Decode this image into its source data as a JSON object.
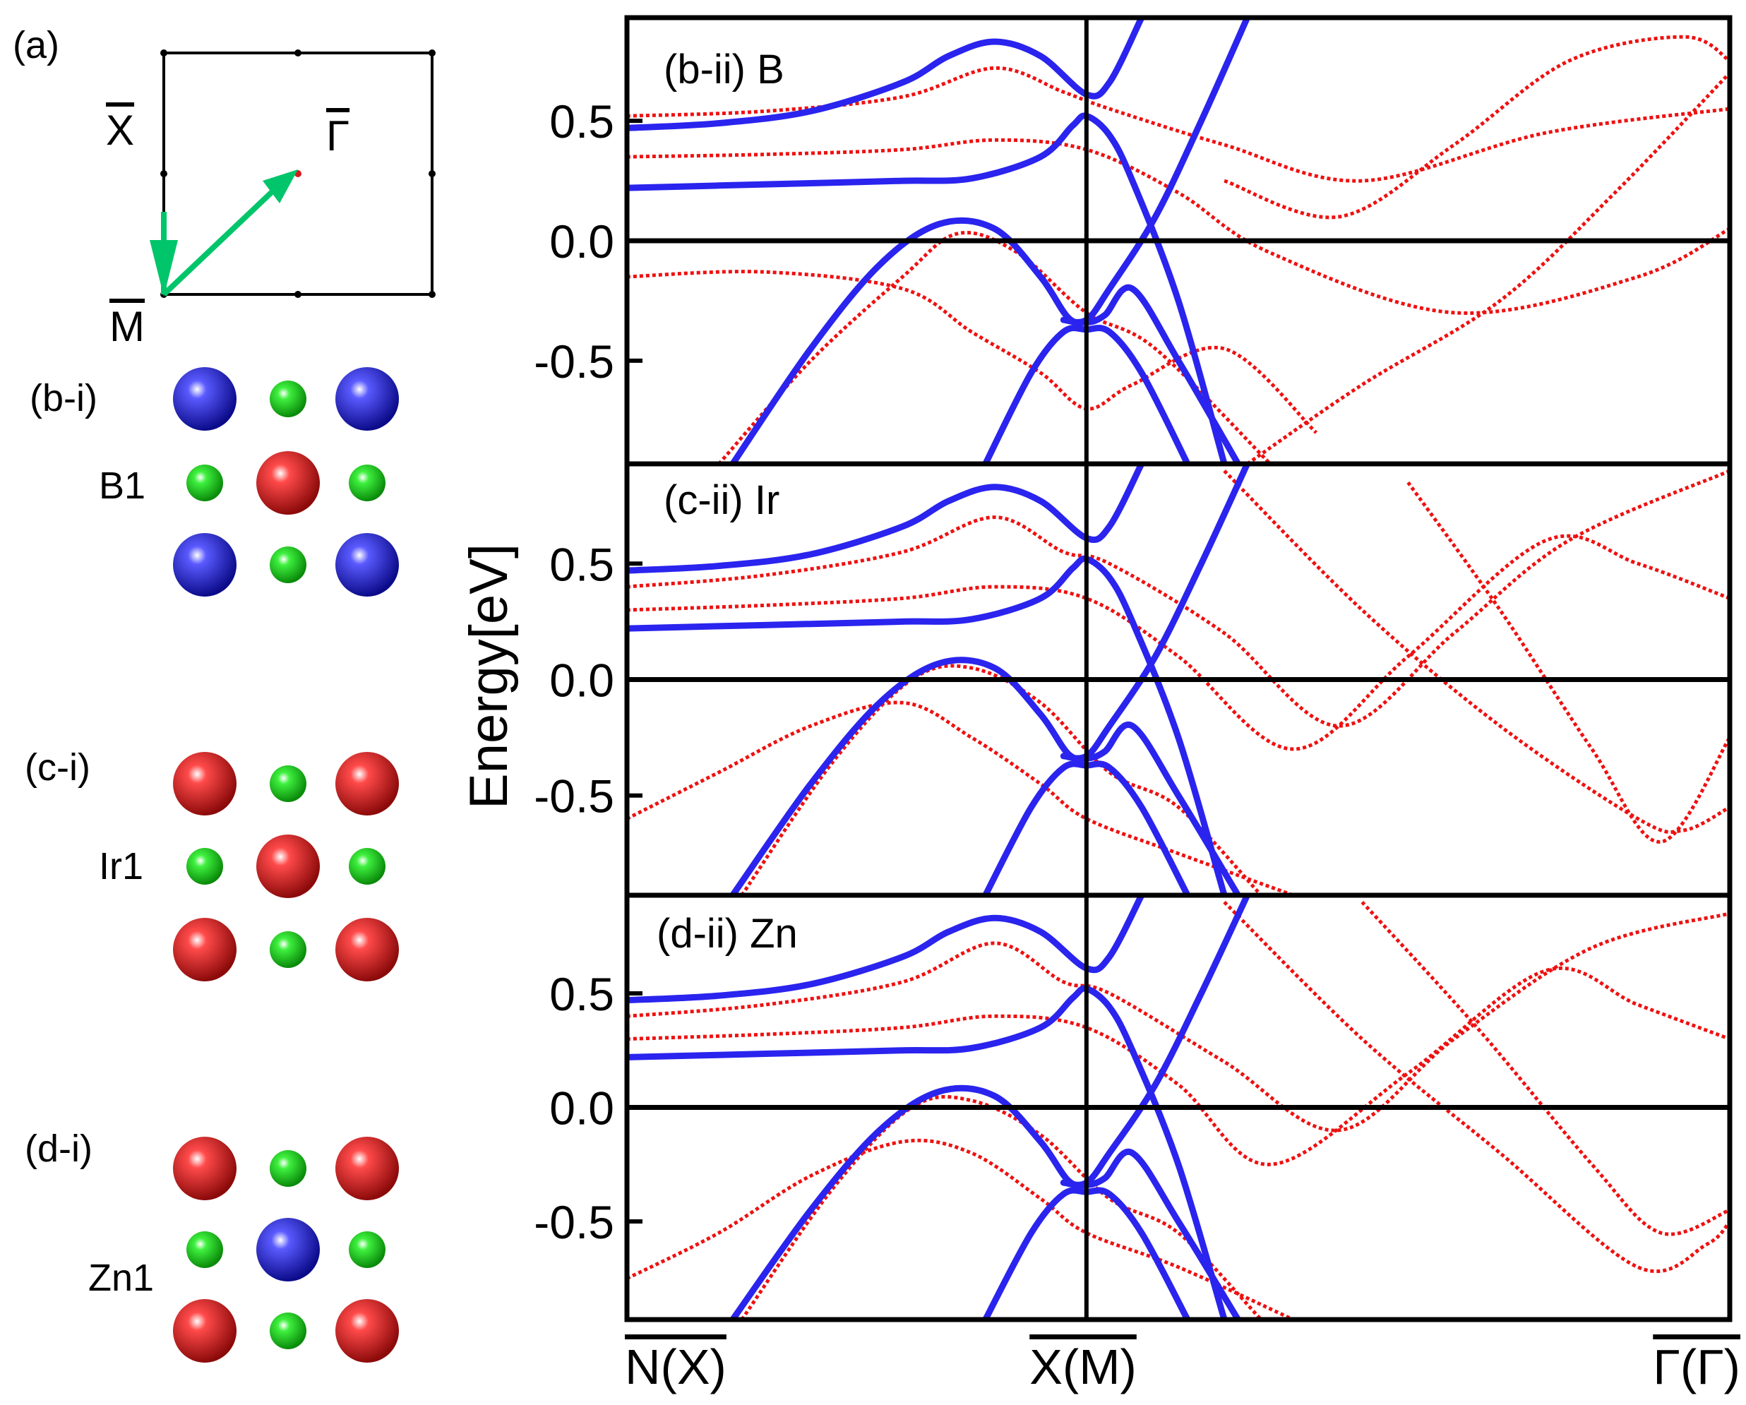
{
  "panel_a": {
    "label": "(a)",
    "points": [
      "X",
      "Γ",
      "M"
    ],
    "arrow_color": "#00c56a"
  },
  "structures": [
    {
      "label": "(b-i)",
      "site": "B1",
      "center": "red",
      "corners": "blue"
    },
    {
      "label": "(c-i)",
      "site": "Ir1",
      "center": "red",
      "corners": "red"
    },
    {
      "label": "(d-i)",
      "site": "Zn1",
      "center": "blue",
      "corners": "red"
    }
  ],
  "colors": {
    "atom_blue": "#1d1dc8",
    "atom_red": "#d41c1c",
    "atom_green": "#22cc22",
    "bulk_band": "#2a24ee",
    "slab_band": "#ee1111",
    "axis": "#000000"
  },
  "chart_data": [
    {
      "type": "line",
      "title": "(b-ii) B",
      "ylabel": "Energy[eV]",
      "ylim": [
        -0.93,
        0.93
      ],
      "yticks": [
        0.5,
        0.0,
        -0.5
      ],
      "ytick_labels": [
        "0.5",
        "0.0",
        "-0.5"
      ],
      "x_tick_labels": [
        "N(X)",
        "X(M)",
        "Γ(Γ)"
      ],
      "x_tick_positions": [
        0.0,
        1.0,
        2.4
      ],
      "fermi_level": 0.0,
      "series": [
        {
          "name": "bulk-upper-1",
          "style": "solid-blue",
          "x": [
            0,
            0.2,
            0.4,
            0.6,
            0.7,
            0.8,
            0.9,
            1.0,
            1.05,
            1.12
          ],
          "y": [
            0.47,
            0.49,
            0.54,
            0.66,
            0.77,
            0.83,
            0.77,
            0.61,
            0.66,
            0.93
          ]
        },
        {
          "name": "bulk-upper-2",
          "style": "solid-blue",
          "x": [
            0,
            0.2,
            0.4,
            0.6,
            0.75,
            0.9,
            0.97,
            1.0,
            1.05,
            1.1,
            1.2,
            1.3
          ],
          "y": [
            0.22,
            0.23,
            0.24,
            0.25,
            0.26,
            0.35,
            0.48,
            0.52,
            0.44,
            0.25,
            -0.25,
            -0.93
          ]
        },
        {
          "name": "bulk-cross",
          "style": "solid-blue",
          "x": [
            0.95,
            1.0,
            1.05,
            1.15,
            1.25,
            1.35
          ],
          "y": [
            -0.33,
            -0.33,
            -0.2,
            0.1,
            0.5,
            0.93
          ]
        },
        {
          "name": "bulk-valence-1",
          "style": "solid-blue",
          "x": [
            0.23,
            0.4,
            0.55,
            0.68,
            0.8,
            0.9,
            0.96,
            1.0,
            1.04,
            1.1,
            1.2,
            1.33
          ],
          "y": [
            -0.93,
            -0.45,
            -0.1,
            0.07,
            0.05,
            -0.15,
            -0.32,
            -0.34,
            -0.31,
            -0.2,
            -0.5,
            -0.93
          ]
        },
        {
          "name": "bulk-valence-2",
          "style": "solid-blue",
          "x": [
            0.78,
            0.88,
            0.95,
            1.0,
            1.05,
            1.12,
            1.22
          ],
          "y": [
            -0.93,
            -0.55,
            -0.38,
            -0.37,
            -0.38,
            -0.55,
            -0.93
          ]
        },
        {
          "name": "slab-1",
          "style": "dotted-red",
          "x": [
            0,
            0.3,
            0.6,
            0.8,
            0.95,
            1.05,
            1.3,
            1.6,
            2.0,
            2.4
          ],
          "y": [
            0.52,
            0.54,
            0.6,
            0.72,
            0.62,
            0.55,
            0.4,
            0.25,
            0.45,
            0.55
          ]
        },
        {
          "name": "slab-2",
          "style": "dotted-red",
          "x": [
            0,
            0.3,
            0.6,
            0.8,
            1.0,
            1.2,
            1.4,
            1.8,
            2.2,
            2.4
          ],
          "y": [
            0.35,
            0.36,
            0.38,
            0.42,
            0.38,
            0.2,
            -0.05,
            -0.3,
            -0.15,
            0.05
          ]
        },
        {
          "name": "slab-3",
          "style": "dotted-red",
          "x": [
            0,
            0.3,
            0.6,
            0.75,
            0.9,
            1.0,
            1.1,
            1.3,
            1.5
          ],
          "y": [
            -0.15,
            -0.13,
            -0.2,
            -0.38,
            -0.55,
            -0.7,
            -0.6,
            -0.45,
            -0.8
          ]
        },
        {
          "name": "slab-4",
          "style": "dotted-red",
          "x": [
            0.2,
            0.4,
            0.6,
            0.72,
            0.85,
            1.0,
            1.15,
            1.4
          ],
          "y": [
            -0.93,
            -0.5,
            -0.15,
            0.03,
            -0.05,
            -0.3,
            -0.45,
            -0.93
          ]
        },
        {
          "name": "slab-5",
          "style": "dotted-red",
          "x": [
            1.3,
            1.55,
            1.8,
            2.05,
            2.3,
            2.4
          ],
          "y": [
            0.25,
            0.1,
            0.4,
            0.75,
            0.85,
            0.75
          ]
        },
        {
          "name": "slab-6",
          "style": "dotted-red",
          "x": [
            1.35,
            1.6,
            1.9,
            2.15,
            2.4
          ],
          "y": [
            -0.93,
            -0.6,
            -0.25,
            0.2,
            0.7
          ]
        }
      ]
    },
    {
      "type": "line",
      "title": "(c-ii) Ir",
      "ylabel": "Energy[eV]",
      "ylim": [
        -0.93,
        0.93
      ],
      "yticks": [
        0.5,
        0.0,
        -0.5
      ],
      "ytick_labels": [
        "0.5",
        "0.0",
        "-0.5"
      ],
      "fermi_level": 0.0,
      "series": [
        {
          "name": "bulk-upper-1",
          "style": "solid-blue",
          "x": [
            0,
            0.2,
            0.4,
            0.6,
            0.7,
            0.8,
            0.9,
            1.0,
            1.05,
            1.12
          ],
          "y": [
            0.47,
            0.49,
            0.54,
            0.66,
            0.77,
            0.83,
            0.77,
            0.61,
            0.66,
            0.93
          ]
        },
        {
          "name": "bulk-upper-2",
          "style": "solid-blue",
          "x": [
            0,
            0.2,
            0.4,
            0.6,
            0.75,
            0.9,
            0.97,
            1.0,
            1.05,
            1.1,
            1.2,
            1.3
          ],
          "y": [
            0.22,
            0.23,
            0.24,
            0.25,
            0.26,
            0.35,
            0.48,
            0.52,
            0.44,
            0.25,
            -0.25,
            -0.93
          ]
        },
        {
          "name": "bulk-cross",
          "style": "solid-blue",
          "x": [
            0.95,
            1.0,
            1.05,
            1.15,
            1.25,
            1.35
          ],
          "y": [
            -0.33,
            -0.33,
            -0.2,
            0.1,
            0.5,
            0.93
          ]
        },
        {
          "name": "bulk-valence-1",
          "style": "solid-blue",
          "x": [
            0.23,
            0.4,
            0.55,
            0.68,
            0.8,
            0.9,
            0.96,
            1.0,
            1.04,
            1.1,
            1.2,
            1.33
          ],
          "y": [
            -0.93,
            -0.45,
            -0.1,
            0.07,
            0.05,
            -0.15,
            -0.32,
            -0.34,
            -0.31,
            -0.2,
            -0.5,
            -0.93
          ]
        },
        {
          "name": "bulk-valence-2",
          "style": "solid-blue",
          "x": [
            0.78,
            0.88,
            0.95,
            1.0,
            1.05,
            1.12,
            1.22
          ],
          "y": [
            -0.93,
            -0.55,
            -0.38,
            -0.37,
            -0.38,
            -0.55,
            -0.93
          ]
        },
        {
          "name": "slab-1",
          "style": "dotted-red",
          "x": [
            0,
            0.3,
            0.6,
            0.8,
            0.95,
            1.05,
            1.3,
            1.55,
            1.8,
            2.05,
            2.4
          ],
          "y": [
            0.4,
            0.45,
            0.55,
            0.7,
            0.55,
            0.5,
            0.2,
            -0.2,
            0.2,
            0.6,
            0.9
          ]
        },
        {
          "name": "slab-2",
          "style": "dotted-red",
          "x": [
            0,
            0.3,
            0.6,
            0.8,
            1.0,
            1.2,
            1.45,
            1.7,
            2.0,
            2.2,
            2.4
          ],
          "y": [
            0.3,
            0.32,
            0.35,
            0.4,
            0.35,
            0.1,
            -0.3,
            0.1,
            0.6,
            0.5,
            0.35
          ]
        },
        {
          "name": "slab-3",
          "style": "dotted-red",
          "x": [
            0,
            0.2,
            0.4,
            0.6,
            0.75,
            0.9,
            1.0,
            1.2,
            1.45
          ],
          "y": [
            -0.6,
            -0.4,
            -0.2,
            -0.1,
            -0.25,
            -0.45,
            -0.6,
            -0.75,
            -0.93
          ]
        },
        {
          "name": "slab-4",
          "style": "dotted-red",
          "x": [
            0.25,
            0.45,
            0.62,
            0.75,
            0.9,
            1.05,
            1.2,
            1.38
          ],
          "y": [
            -0.93,
            -0.35,
            0.0,
            0.05,
            -0.1,
            -0.4,
            -0.55,
            -0.93
          ]
        },
        {
          "name": "slab-5",
          "style": "dotted-red",
          "x": [
            1.3,
            1.6,
            1.9,
            2.2,
            2.3,
            2.4
          ],
          "y": [
            0.9,
            0.3,
            -0.2,
            -0.6,
            -0.65,
            -0.55
          ]
        },
        {
          "name": "slab-6",
          "style": "dotted-red",
          "x": [
            1.7,
            1.9,
            2.1,
            2.25,
            2.4
          ],
          "y": [
            0.85,
            0.3,
            -0.3,
            -0.7,
            -0.25
          ]
        }
      ]
    },
    {
      "type": "line",
      "title": "(d-ii) Zn",
      "ylabel": "Energy[eV]",
      "ylim": [
        -0.93,
        0.93
      ],
      "yticks": [
        0.5,
        0.0,
        -0.5
      ],
      "ytick_labels": [
        "0.5",
        "0.0",
        "-0.5"
      ],
      "fermi_level": 0.0,
      "series": [
        {
          "name": "bulk-upper-1",
          "style": "solid-blue",
          "x": [
            0,
            0.2,
            0.4,
            0.6,
            0.7,
            0.8,
            0.9,
            1.0,
            1.05,
            1.12
          ],
          "y": [
            0.47,
            0.49,
            0.54,
            0.66,
            0.77,
            0.83,
            0.77,
            0.61,
            0.66,
            0.93
          ]
        },
        {
          "name": "bulk-upper-2",
          "style": "solid-blue",
          "x": [
            0,
            0.2,
            0.4,
            0.6,
            0.75,
            0.9,
            0.97,
            1.0,
            1.05,
            1.1,
            1.2,
            1.3
          ],
          "y": [
            0.22,
            0.23,
            0.24,
            0.25,
            0.26,
            0.35,
            0.48,
            0.52,
            0.44,
            0.25,
            -0.25,
            -0.93
          ]
        },
        {
          "name": "bulk-cross",
          "style": "solid-blue",
          "x": [
            0.95,
            1.0,
            1.05,
            1.15,
            1.25,
            1.35
          ],
          "y": [
            -0.33,
            -0.33,
            -0.2,
            0.1,
            0.5,
            0.93
          ]
        },
        {
          "name": "bulk-valence-1",
          "style": "solid-blue",
          "x": [
            0.23,
            0.4,
            0.55,
            0.68,
            0.8,
            0.9,
            0.96,
            1.0,
            1.04,
            1.1,
            1.2,
            1.33
          ],
          "y": [
            -0.93,
            -0.45,
            -0.1,
            0.07,
            0.05,
            -0.15,
            -0.32,
            -0.34,
            -0.31,
            -0.2,
            -0.5,
            -0.93
          ]
        },
        {
          "name": "bulk-valence-2",
          "style": "solid-blue",
          "x": [
            0.78,
            0.88,
            0.95,
            1.0,
            1.05,
            1.12,
            1.22
          ],
          "y": [
            -0.93,
            -0.55,
            -0.38,
            -0.37,
            -0.38,
            -0.55,
            -0.93
          ]
        },
        {
          "name": "slab-1",
          "style": "dotted-red",
          "x": [
            0,
            0.3,
            0.6,
            0.8,
            0.95,
            1.05,
            1.3,
            1.55,
            1.8,
            2.1,
            2.4
          ],
          "y": [
            0.4,
            0.45,
            0.55,
            0.72,
            0.55,
            0.5,
            0.2,
            -0.1,
            0.3,
            0.7,
            0.85
          ]
        },
        {
          "name": "slab-2",
          "style": "dotted-red",
          "x": [
            0,
            0.3,
            0.6,
            0.8,
            1.0,
            1.2,
            1.4,
            1.7,
            2.0,
            2.2,
            2.4
          ],
          "y": [
            0.3,
            0.32,
            0.35,
            0.4,
            0.35,
            0.1,
            -0.25,
            0.15,
            0.6,
            0.45,
            0.3
          ]
        },
        {
          "name": "slab-3",
          "style": "dotted-red",
          "x": [
            0,
            0.2,
            0.4,
            0.6,
            0.75,
            0.9,
            1.0,
            1.2,
            1.45
          ],
          "y": [
            -0.75,
            -0.55,
            -0.3,
            -0.15,
            -0.2,
            -0.4,
            -0.55,
            -0.7,
            -0.93
          ]
        },
        {
          "name": "slab-4",
          "style": "dotted-red",
          "x": [
            0.25,
            0.45,
            0.62,
            0.75,
            0.9,
            1.05,
            1.2,
            1.38
          ],
          "y": [
            -0.93,
            -0.35,
            0.0,
            0.03,
            -0.12,
            -0.4,
            -0.55,
            -0.93
          ]
        },
        {
          "name": "slab-5",
          "style": "dotted-red",
          "x": [
            1.3,
            1.6,
            1.9,
            2.2,
            2.35,
            2.4
          ],
          "y": [
            0.9,
            0.3,
            -0.2,
            -0.7,
            -0.6,
            -0.5
          ]
        },
        {
          "name": "slab-6",
          "style": "dotted-red",
          "x": [
            1.6,
            1.85,
            2.1,
            2.25,
            2.4
          ],
          "y": [
            0.9,
            0.35,
            -0.25,
            -0.55,
            -0.45
          ]
        }
      ]
    }
  ]
}
